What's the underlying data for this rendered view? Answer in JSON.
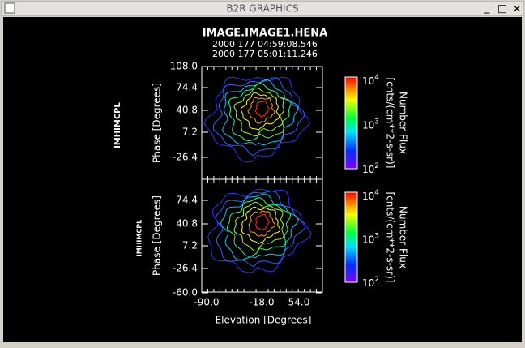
{
  "window": {
    "title": "B2R GRAPHICS",
    "buttons": [
      "_",
      "□",
      "×"
    ]
  },
  "plot": {
    "title": "IMAGE.IMAGE1.HENA",
    "times": [
      "2000 177 04:59:08.546",
      "2000 177 05:01:11.246"
    ],
    "x_axis": {
      "label": "Elevation   [Degrees]",
      "ticks": [
        "-90.0",
        "-18.0",
        "54.0"
      ]
    },
    "panels": [
      {
        "name": "IMHIMCPL",
        "y_label": "Phase   [Degrees]",
        "y_ticks": [
          "108.0",
          "74.4",
          "40.8",
          "7.2",
          "-26.4"
        ],
        "colorbar": {
          "title": "Number Flux",
          "units": "[cnts/(cm**2-s-sr)]",
          "labels": [
            {
              "base": "10",
              "exp": "4"
            },
            {
              "base": "10",
              "exp": "3"
            },
            {
              "base": "10",
              "exp": "2"
            }
          ]
        }
      },
      {
        "name": "IMHIMCPL",
        "y_label": "Phase   [Degrees]",
        "y_ticks": [
          "74.4",
          "40.8",
          "7.2",
          "-26.4",
          "-60.0"
        ],
        "colorbar": {
          "title": "Number Flux",
          "units": "[cnts/(cm**2-s-sr)]",
          "labels": [
            {
              "base": "10",
              "exp": "4"
            },
            {
              "base": "10",
              "exp": "3"
            },
            {
              "base": "10",
              "exp": "2"
            }
          ]
        }
      }
    ]
  }
}
